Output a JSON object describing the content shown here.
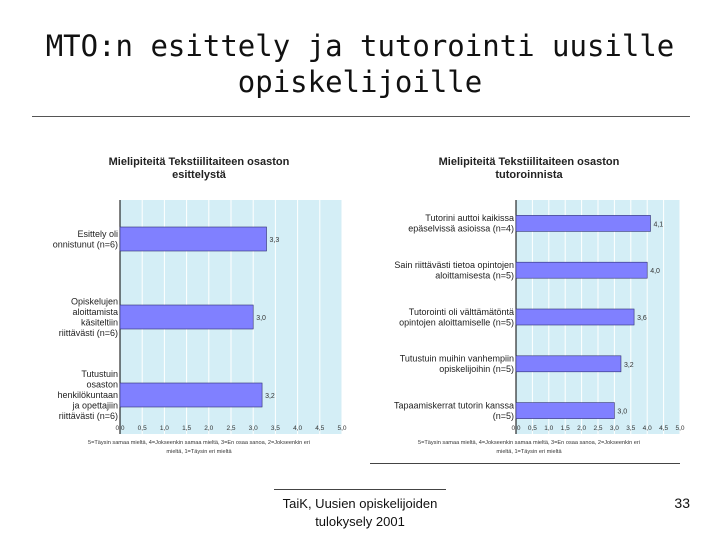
{
  "slide": {
    "title_line1": "MTO:n esittely ja tutorointi uusille",
    "title_line2": "opiskelijoille",
    "footer_line1": "TaiK, Uusien opiskelijoiden",
    "footer_line2": "tulokysely 2001",
    "page_number": "33"
  },
  "colors": {
    "plot_bg": "#d4eef6",
    "bar": "#8080ff",
    "bar_edge": "#303070"
  },
  "chart_data": [
    {
      "type": "bar",
      "orientation": "horizontal",
      "title": "Mielipiteitä Tekstiilitaiteen osaston esittelystä",
      "categories": [
        [
          "Esittely oli",
          "onnistunut (n=6)"
        ],
        [
          "Opiskelujen",
          "aloittamista",
          "käsiteltiin",
          "riittävästi (n=6)"
        ],
        [
          "Tutustuin",
          "osaston",
          "henkilökuntaan",
          "ja opettajiin",
          "riittävästi (n=6)"
        ]
      ],
      "values": [
        3.3,
        3.0,
        3.2
      ],
      "value_labels": [
        "3,3",
        "3,0",
        "3,2"
      ],
      "xlim": [
        0,
        5
      ],
      "xticks": [
        "0,0",
        "0,5",
        "1,0",
        "1,5",
        "2,0",
        "2,5",
        "3,0",
        "3,5",
        "4,0",
        "4,5",
        "5,0"
      ],
      "note": "5=Täysin samaa mieltä, 4=Jokseenkin samaa mieltä, 3=En osaa sanoa, 2=Jokseenkin eri mieltä, 1=Täysin eri mieltä"
    },
    {
      "type": "bar",
      "orientation": "horizontal",
      "title": "Mielipiteitä Tekstiilitaiteen osaston tutoroinnista",
      "categories": [
        [
          "Tutorini auttoi kaikissa",
          "epäselvissä asioissa (n=4)"
        ],
        [
          "Sain riittävästi tietoa opintojen",
          "aloittamisesta (n=5)"
        ],
        [
          "Tutorointi oli välttämätöntä",
          "opintojen aloittamiselle (n=5)"
        ],
        [
          "Tutustuin muihin vanhempiin",
          "opiskelijoihin (n=5)"
        ],
        [
          "Tapaamiskerrat tutorin kanssa",
          "(n=5)"
        ]
      ],
      "values": [
        4.1,
        4.0,
        3.6,
        3.2,
        3.0
      ],
      "value_labels": [
        "4,1",
        "4,0",
        "3,6",
        "3,2",
        "3,0"
      ],
      "xlim": [
        0,
        5
      ],
      "xticks": [
        "0,0",
        "0,5",
        "1,0",
        "1,5",
        "2,0",
        "2,5",
        "3,0",
        "3,5",
        "4,0",
        "4,5",
        "5,0"
      ],
      "note": "5=Täysin samaa mieltä, 4=Jokseenkin samaa mieltä, 3=En osaa sanoa, 2=Jokseenkin eri mieltä, 1=Täysin eri mieltä"
    }
  ]
}
